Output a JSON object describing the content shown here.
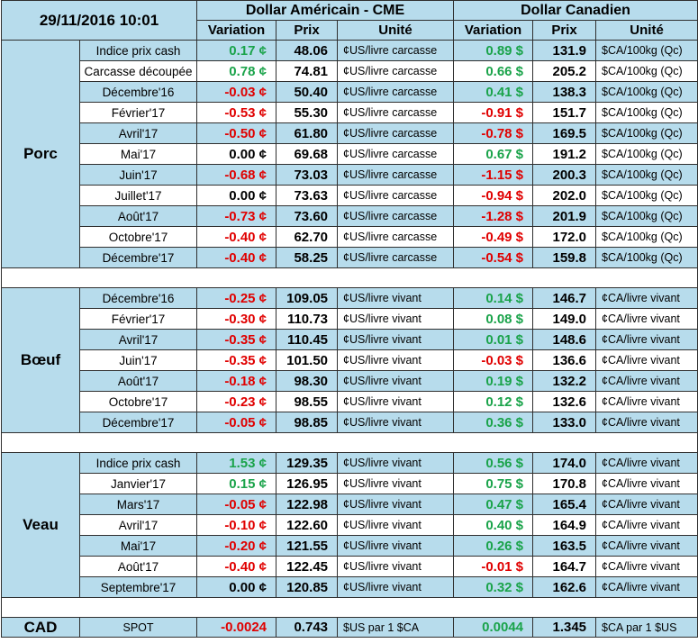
{
  "header": {
    "timestamp": "29/11/2016 10:01",
    "group_usd": "Dollar Américain - CME",
    "group_cad": "Dollar Canadien",
    "col_variation": "Variation",
    "col_prix": "Prix",
    "col_unite": "Unité"
  },
  "sections": [
    {
      "name": "Porc",
      "rows": [
        {
          "contract": "Indice prix cash",
          "us_var": "0.17 ¢",
          "us_dir": "pos",
          "us_price": "48.06",
          "us_unit": "¢US/livre carcasse",
          "ca_var": "0.89 $",
          "ca_dir": "pos",
          "ca_price": "131.9",
          "ca_unit": "$CA/100kg (Qc)"
        },
        {
          "contract": "Carcasse découpée",
          "us_var": "0.78 ¢",
          "us_dir": "pos",
          "us_price": "74.81",
          "us_unit": "¢US/livre carcasse",
          "ca_var": "0.66 $",
          "ca_dir": "pos",
          "ca_price": "205.2",
          "ca_unit": "$CA/100kg (Qc)"
        },
        {
          "contract": "Décembre'16",
          "us_var": "-0.03 ¢",
          "us_dir": "neg",
          "us_price": "50.40",
          "us_unit": "¢US/livre carcasse",
          "ca_var": "0.41 $",
          "ca_dir": "pos",
          "ca_price": "138.3",
          "ca_unit": "$CA/100kg (Qc)"
        },
        {
          "contract": "Février'17",
          "us_var": "-0.53 ¢",
          "us_dir": "neg",
          "us_price": "55.30",
          "us_unit": "¢US/livre carcasse",
          "ca_var": "-0.91 $",
          "ca_dir": "neg",
          "ca_price": "151.7",
          "ca_unit": "$CA/100kg (Qc)"
        },
        {
          "contract": "Avril'17",
          "us_var": "-0.50 ¢",
          "us_dir": "neg",
          "us_price": "61.80",
          "us_unit": "¢US/livre carcasse",
          "ca_var": "-0.78 $",
          "ca_dir": "neg",
          "ca_price": "169.5",
          "ca_unit": "$CA/100kg (Qc)"
        },
        {
          "contract": "Mai'17",
          "us_var": "0.00 ¢",
          "us_dir": "zero",
          "us_price": "69.68",
          "us_unit": "¢US/livre carcasse",
          "ca_var": "0.67 $",
          "ca_dir": "pos",
          "ca_price": "191.2",
          "ca_unit": "$CA/100kg (Qc)"
        },
        {
          "contract": "Juin'17",
          "us_var": "-0.68 ¢",
          "us_dir": "neg",
          "us_price": "73.03",
          "us_unit": "¢US/livre carcasse",
          "ca_var": "-1.15 $",
          "ca_dir": "neg",
          "ca_price": "200.3",
          "ca_unit": "$CA/100kg (Qc)"
        },
        {
          "contract": "Juillet'17",
          "us_var": "0.00 ¢",
          "us_dir": "zero",
          "us_price": "73.63",
          "us_unit": "¢US/livre carcasse",
          "ca_var": "-0.94 $",
          "ca_dir": "neg",
          "ca_price": "202.0",
          "ca_unit": "$CA/100kg (Qc)"
        },
        {
          "contract": "Août'17",
          "us_var": "-0.73 ¢",
          "us_dir": "neg",
          "us_price": "73.60",
          "us_unit": "¢US/livre carcasse",
          "ca_var": "-1.28 $",
          "ca_dir": "neg",
          "ca_price": "201.9",
          "ca_unit": "$CA/100kg (Qc)"
        },
        {
          "contract": "Octobre'17",
          "us_var": "-0.40 ¢",
          "us_dir": "neg",
          "us_price": "62.70",
          "us_unit": "¢US/livre carcasse",
          "ca_var": "-0.49 $",
          "ca_dir": "neg",
          "ca_price": "172.0",
          "ca_unit": "$CA/100kg (Qc)"
        },
        {
          "contract": "Décembre'17",
          "us_var": "-0.40 ¢",
          "us_dir": "neg",
          "us_price": "58.25",
          "us_unit": "¢US/livre carcasse",
          "ca_var": "-0.54 $",
          "ca_dir": "neg",
          "ca_price": "159.8",
          "ca_unit": "$CA/100kg (Qc)"
        }
      ]
    },
    {
      "name": "Bœuf",
      "rows": [
        {
          "contract": "Décembre'16",
          "us_var": "-0.25 ¢",
          "us_dir": "neg",
          "us_price": "109.05",
          "us_unit": "¢US/livre vivant",
          "ca_var": "0.14 $",
          "ca_dir": "pos",
          "ca_price": "146.7",
          "ca_unit": "¢CA/livre vivant"
        },
        {
          "contract": "Février'17",
          "us_var": "-0.30 ¢",
          "us_dir": "neg",
          "us_price": "110.73",
          "us_unit": "¢US/livre vivant",
          "ca_var": "0.08 $",
          "ca_dir": "pos",
          "ca_price": "149.0",
          "ca_unit": "¢CA/livre vivant"
        },
        {
          "contract": "Avril'17",
          "us_var": "-0.35 ¢",
          "us_dir": "neg",
          "us_price": "110.45",
          "us_unit": "¢US/livre vivant",
          "ca_var": "0.01 $",
          "ca_dir": "pos",
          "ca_price": "148.6",
          "ca_unit": "¢CA/livre vivant"
        },
        {
          "contract": "Juin'17",
          "us_var": "-0.35 ¢",
          "us_dir": "neg",
          "us_price": "101.50",
          "us_unit": "¢US/livre vivant",
          "ca_var": "-0.03 $",
          "ca_dir": "neg",
          "ca_price": "136.6",
          "ca_unit": "¢CA/livre vivant"
        },
        {
          "contract": "Août'17",
          "us_var": "-0.18 ¢",
          "us_dir": "neg",
          "us_price": "98.30",
          "us_unit": "¢US/livre vivant",
          "ca_var": "0.19 $",
          "ca_dir": "pos",
          "ca_price": "132.2",
          "ca_unit": "¢CA/livre vivant"
        },
        {
          "contract": "Octobre'17",
          "us_var": "-0.23 ¢",
          "us_dir": "neg",
          "us_price": "98.55",
          "us_unit": "¢US/livre vivant",
          "ca_var": "0.12 $",
          "ca_dir": "pos",
          "ca_price": "132.6",
          "ca_unit": "¢CA/livre vivant"
        },
        {
          "contract": "Décembre'17",
          "us_var": "-0.05 ¢",
          "us_dir": "neg",
          "us_price": "98.85",
          "us_unit": "¢US/livre vivant",
          "ca_var": "0.36 $",
          "ca_dir": "pos",
          "ca_price": "133.0",
          "ca_unit": "¢CA/livre vivant"
        }
      ]
    },
    {
      "name": "Veau",
      "rows": [
        {
          "contract": "Indice prix cash",
          "us_var": "1.53 ¢",
          "us_dir": "pos",
          "us_price": "129.35",
          "us_unit": "¢US/livre vivant",
          "ca_var": "0.56 $",
          "ca_dir": "pos",
          "ca_price": "174.0",
          "ca_unit": "¢CA/livre vivant"
        },
        {
          "contract": "Janvier'17",
          "us_var": "0.15 ¢",
          "us_dir": "pos",
          "us_price": "126.95",
          "us_unit": "¢US/livre vivant",
          "ca_var": "0.75 $",
          "ca_dir": "pos",
          "ca_price": "170.8",
          "ca_unit": "¢CA/livre vivant"
        },
        {
          "contract": "Mars'17",
          "us_var": "-0.05 ¢",
          "us_dir": "neg",
          "us_price": "122.98",
          "us_unit": "¢US/livre vivant",
          "ca_var": "0.47 $",
          "ca_dir": "pos",
          "ca_price": "165.4",
          "ca_unit": "¢CA/livre vivant"
        },
        {
          "contract": "Avril'17",
          "us_var": "-0.10 ¢",
          "us_dir": "neg",
          "us_price": "122.60",
          "us_unit": "¢US/livre vivant",
          "ca_var": "0.40 $",
          "ca_dir": "pos",
          "ca_price": "164.9",
          "ca_unit": "¢CA/livre vivant"
        },
        {
          "contract": "Mai'17",
          "us_var": "-0.20 ¢",
          "us_dir": "neg",
          "us_price": "121.55",
          "us_unit": "¢US/livre vivant",
          "ca_var": "0.26 $",
          "ca_dir": "pos",
          "ca_price": "163.5",
          "ca_unit": "¢CA/livre vivant"
        },
        {
          "contract": "Août'17",
          "us_var": "-0.40 ¢",
          "us_dir": "neg",
          "us_price": "122.45",
          "us_unit": "¢US/livre vivant",
          "ca_var": "-0.01 $",
          "ca_dir": "neg",
          "ca_price": "164.7",
          "ca_unit": "¢CA/livre vivant"
        },
        {
          "contract": "Septembre'17",
          "us_var": "0.00 ¢",
          "us_dir": "zero",
          "us_price": "120.85",
          "us_unit": "¢US/livre vivant",
          "ca_var": "0.32 $",
          "ca_dir": "pos",
          "ca_price": "162.6",
          "ca_unit": "¢CA/livre vivant"
        }
      ]
    }
  ],
  "cad": {
    "label": "CAD",
    "contract": "SPOT",
    "us_var": "-0.0024",
    "us_dir": "neg",
    "us_price": "0.743",
    "us_unit": "$US par 1 $CA",
    "ca_var": "0.0044",
    "ca_dir": "pos",
    "ca_price": "1.345",
    "ca_unit": "$CA par 1 $US"
  },
  "colors": {
    "positive": "#1aa34a",
    "negative": "#e00000",
    "band": "#b7dcec"
  }
}
